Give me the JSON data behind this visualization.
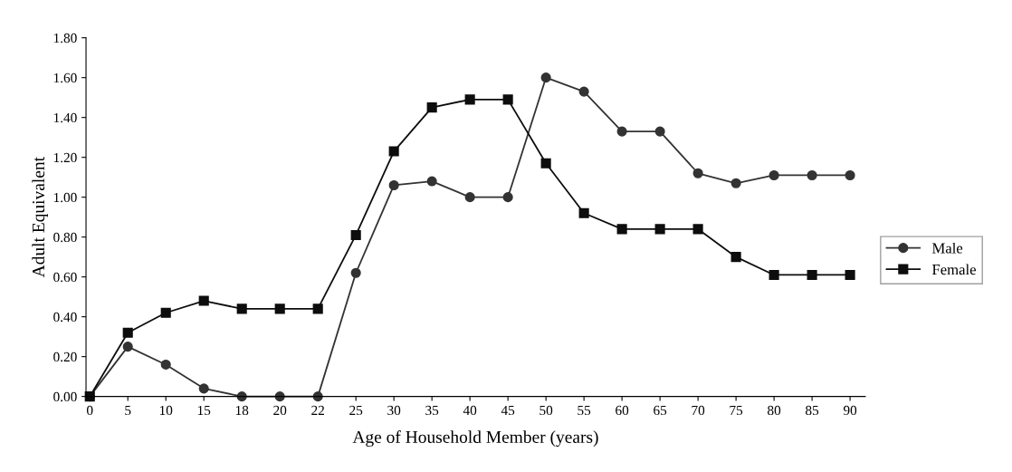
{
  "chart_data": {
    "type": "line",
    "xlabel": "Age of Household Member (years)",
    "ylabel": "Adult Equivalent",
    "categories": [
      "0",
      "5",
      "10",
      "15",
      "18",
      "20",
      "22",
      "25",
      "30",
      "35",
      "40",
      "45",
      "50",
      "55",
      "60",
      "65",
      "70",
      "75",
      "80",
      "85",
      "90"
    ],
    "series": [
      {
        "name": "Male",
        "color": "#333333",
        "marker": "circle",
        "values": [
          0,
          0.25,
          0.16,
          0.04,
          0,
          0,
          0,
          0.62,
          1.06,
          1.08,
          1.0,
          1.0,
          1.6,
          1.53,
          1.33,
          1.33,
          1.12,
          1.07,
          1.11,
          1.11,
          1.11
        ]
      },
      {
        "name": "Female",
        "color": "#0d0d0d",
        "marker": "square",
        "values": [
          0,
          0.32,
          0.42,
          0.48,
          0.44,
          0.44,
          0.44,
          0.81,
          1.23,
          1.45,
          1.49,
          1.49,
          1.17,
          0.92,
          0.84,
          0.84,
          0.84,
          0.7,
          0.61,
          0.61,
          0.61
        ]
      }
    ],
    "ylim": [
      0,
      1.8
    ],
    "yticks": [
      {
        "value": 0,
        "label": "0.00"
      },
      {
        "value": 0.2,
        "label": "0.20"
      },
      {
        "value": 0.4,
        "label": "0.40"
      },
      {
        "value": 0.6,
        "label": "0.60"
      },
      {
        "value": 0.8,
        "label": "0.80"
      },
      {
        "value": 1.0,
        "label": "1.00"
      },
      {
        "value": 1.2,
        "label": "1.20"
      },
      {
        "value": 1.4,
        "label": "1.40"
      },
      {
        "value": 1.6,
        "label": "1.60"
      },
      {
        "value": 1.8,
        "label": "1.80"
      }
    ],
    "grid": false,
    "legend": "right",
    "line_style": "solid"
  }
}
